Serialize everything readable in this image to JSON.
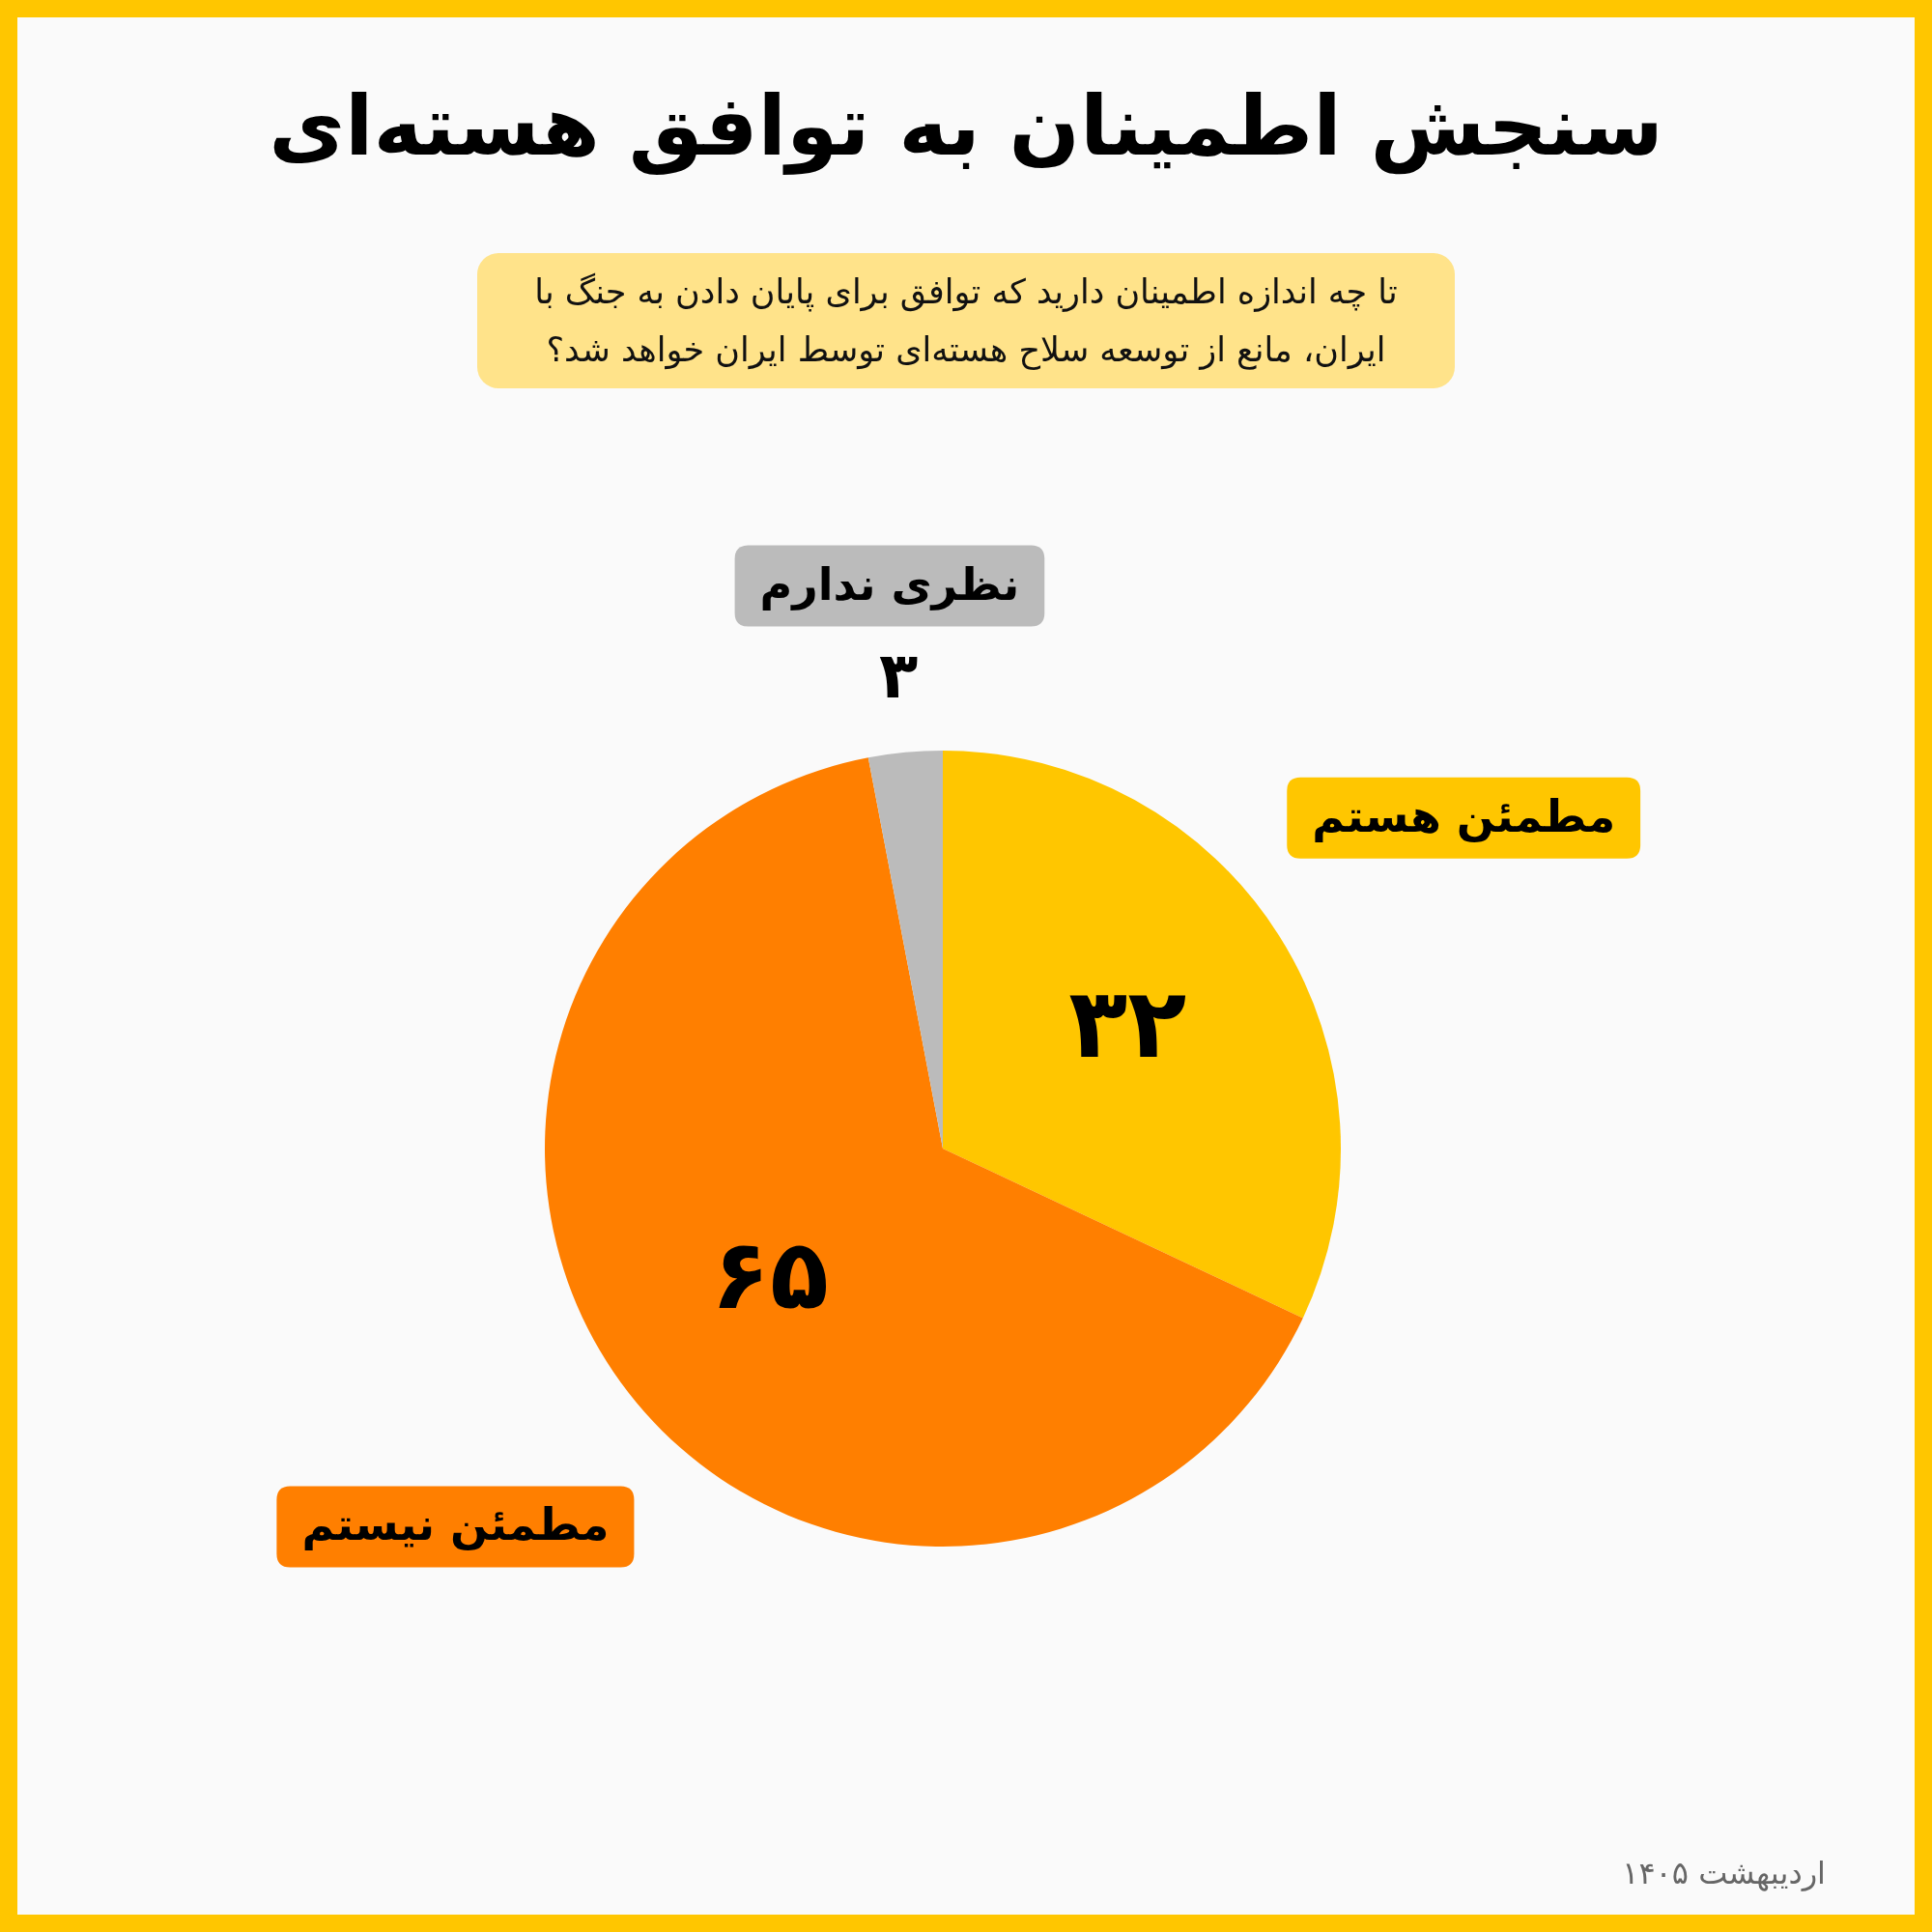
{
  "chart_data": {
    "type": "pie",
    "title": "سنجش اطمینان به توافق هسته‌ای",
    "subtitle": "تا چه اندازه اطمینان دارید که توافق برای پایان دادن به جنگ با ایران، مانع از توسعه سلاح هسته‌ای توسط ایران خواهد شد؟",
    "categories": [
      "مطمئن هستم",
      "مطمئن نیستم",
      "نظری ندارم"
    ],
    "values": [
      32,
      65,
      3
    ],
    "colors": [
      "#ffc600",
      "#ff7f00",
      "#bbbbbb"
    ],
    "value_labels": [
      "۳۲",
      "۶۵",
      "۳"
    ],
    "annotations": [
      "اردیبهشت ۱۴۰۵"
    ]
  }
}
